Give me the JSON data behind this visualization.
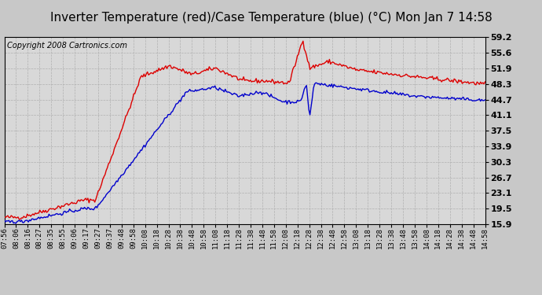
{
  "title": "Inverter Temperature (red)/Case Temperature (blue) (°C) Mon Jan 7 14:58",
  "copyright": "Copyright 2008 Cartronics.com",
  "outer_bg": "#c8c8c8",
  "title_bg": "#ffffff",
  "plot_bg_color": "#d8d8d8",
  "red_color": "#dd0000",
  "blue_color": "#0000cc",
  "yticks": [
    15.9,
    19.5,
    23.1,
    26.7,
    30.3,
    33.9,
    37.5,
    41.1,
    44.7,
    48.3,
    51.9,
    55.6,
    59.2
  ],
  "ylim": [
    15.9,
    59.2
  ],
  "x_labels": [
    "07:56",
    "08:06",
    "08:16",
    "08:27",
    "08:35",
    "08:55",
    "09:06",
    "09:17",
    "09:27",
    "09:37",
    "09:48",
    "09:58",
    "10:08",
    "10:18",
    "10:28",
    "10:38",
    "10:48",
    "10:58",
    "11:08",
    "11:18",
    "11:28",
    "11:38",
    "11:48",
    "11:58",
    "12:08",
    "12:18",
    "12:28",
    "12:38",
    "12:48",
    "12:58",
    "13:08",
    "13:18",
    "13:28",
    "13:38",
    "13:48",
    "13:58",
    "14:08",
    "14:18",
    "14:28",
    "14:38",
    "14:48",
    "14:58"
  ],
  "title_fontsize": 11,
  "copyright_fontsize": 7,
  "tick_fontsize": 8,
  "grid_color": "#b0b0b0",
  "line_width": 1.0,
  "border_color": "#000000"
}
